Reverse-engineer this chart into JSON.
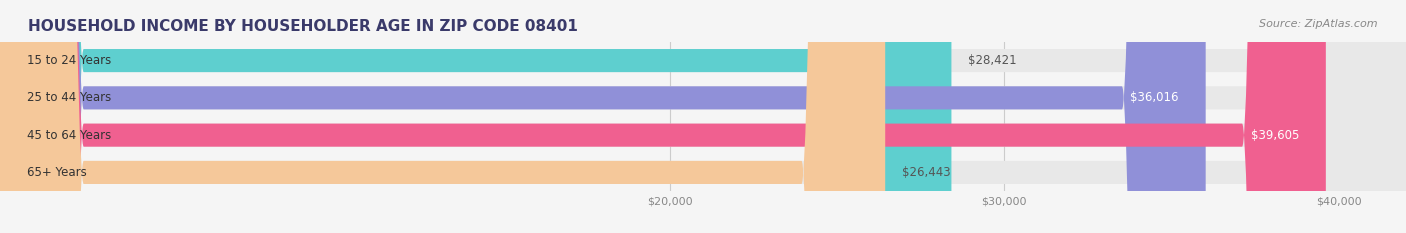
{
  "title": "HOUSEHOLD INCOME BY HOUSEHOLDER AGE IN ZIP CODE 08401",
  "source": "Source: ZipAtlas.com",
  "categories": [
    "15 to 24 Years",
    "25 to 44 Years",
    "45 to 64 Years",
    "65+ Years"
  ],
  "values": [
    28421,
    36016,
    39605,
    26443
  ],
  "bar_colors": [
    "#5ecfcf",
    "#9090d8",
    "#f06090",
    "#f5c89a"
  ],
  "bar_labels": [
    "$28,421",
    "$36,016",
    "$39,605",
    "$26,443"
  ],
  "label_colors": [
    "#555555",
    "#ffffff",
    "#ffffff",
    "#555555"
  ],
  "xmin": 0,
  "xmax": 42000,
  "xticks": [
    20000,
    30000,
    40000
  ],
  "xticklabels": [
    "$20,000",
    "$30,000",
    "$40,000"
  ],
  "background_color": "#f5f5f5",
  "bar_bg_color": "#e8e8e8",
  "title_fontsize": 11,
  "source_fontsize": 8,
  "bar_height": 0.62,
  "label_fontsize": 8.5
}
